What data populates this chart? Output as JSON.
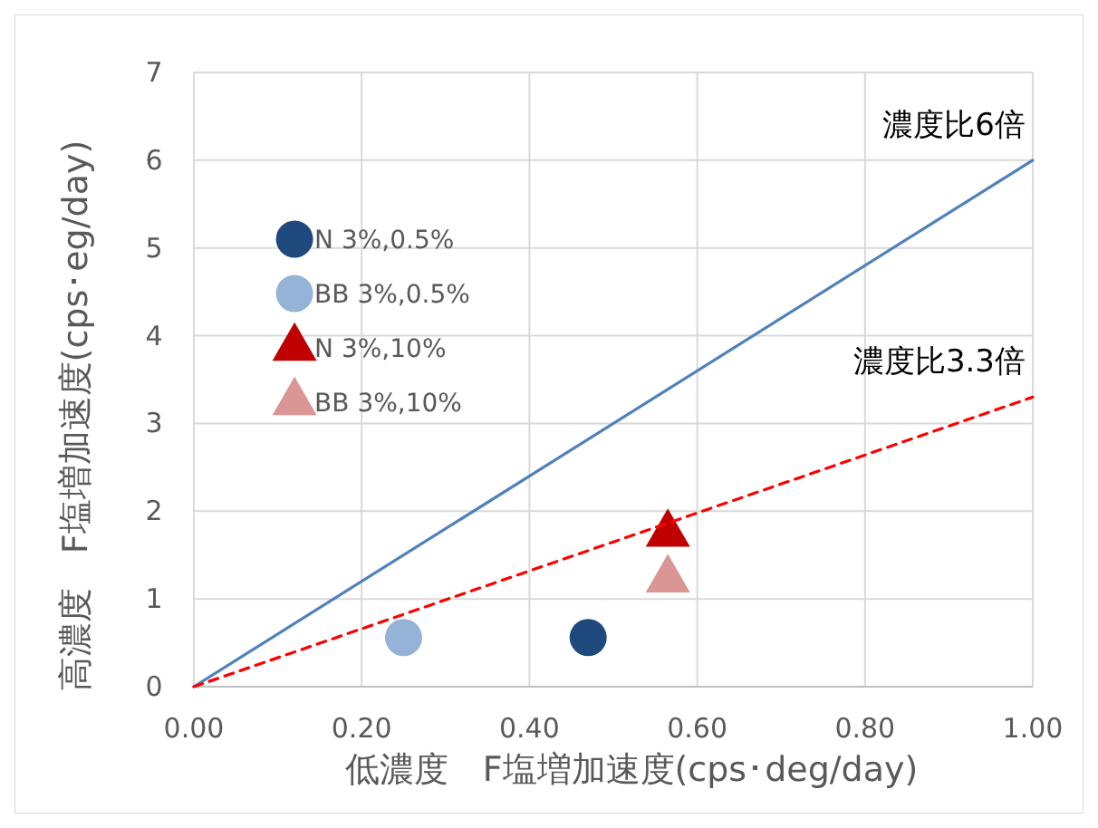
{
  "chart_data": {
    "type": "scatter",
    "xlabel": "低濃度　F塩増加速度(cps･deg/day)",
    "ylabel": "高濃度　F塩増加速度(cps･eg/day)",
    "xlim": [
      0,
      1
    ],
    "xticks": [
      {
        "value": 0,
        "label": "0.00"
      },
      {
        "value": 0.2,
        "label": "0.20"
      },
      {
        "value": 0.4,
        "label": "0.40"
      },
      {
        "value": 0.6,
        "label": "0.60"
      },
      {
        "value": 0.8,
        "label": "0.80"
      },
      {
        "value": 1,
        "label": "1.00"
      }
    ],
    "ylim": [
      0,
      7
    ],
    "yticks": [
      0,
      1,
      2,
      3,
      4,
      5,
      6,
      7
    ],
    "grid": true,
    "legend": "left",
    "series": [
      {
        "name": "N 3%,0.5%",
        "color": "#1f497d",
        "marker": "circle",
        "x": [
          0.47
        ],
        "values": [
          0.56
        ]
      },
      {
        "name": "BB 3%,0.5%",
        "color": "#95b3d7",
        "marker": "circle",
        "x": [
          0.25
        ],
        "values": [
          0.56
        ]
      },
      {
        "name": "N 3%,10%",
        "color": "#c00000",
        "marker": "triangle",
        "x": [
          0.565
        ],
        "values": [
          1.74
        ]
      },
      {
        "name": "BB 3%,10%",
        "color": "#da9694",
        "marker": "triangle",
        "x": [
          0.565
        ],
        "values": [
          1.22
        ]
      },
      {
        "type": "line",
        "name": "濃度比6倍",
        "color": "#4f81bd",
        "line_style": "solid",
        "x": [
          0,
          1
        ],
        "values": [
          0,
          6
        ]
      },
      {
        "type": "line",
        "name": "濃度比3.3倍",
        "color": "#ff0000",
        "line_style": "dashed",
        "x": [
          0,
          1
        ],
        "values": [
          0,
          3.3
        ]
      }
    ]
  }
}
